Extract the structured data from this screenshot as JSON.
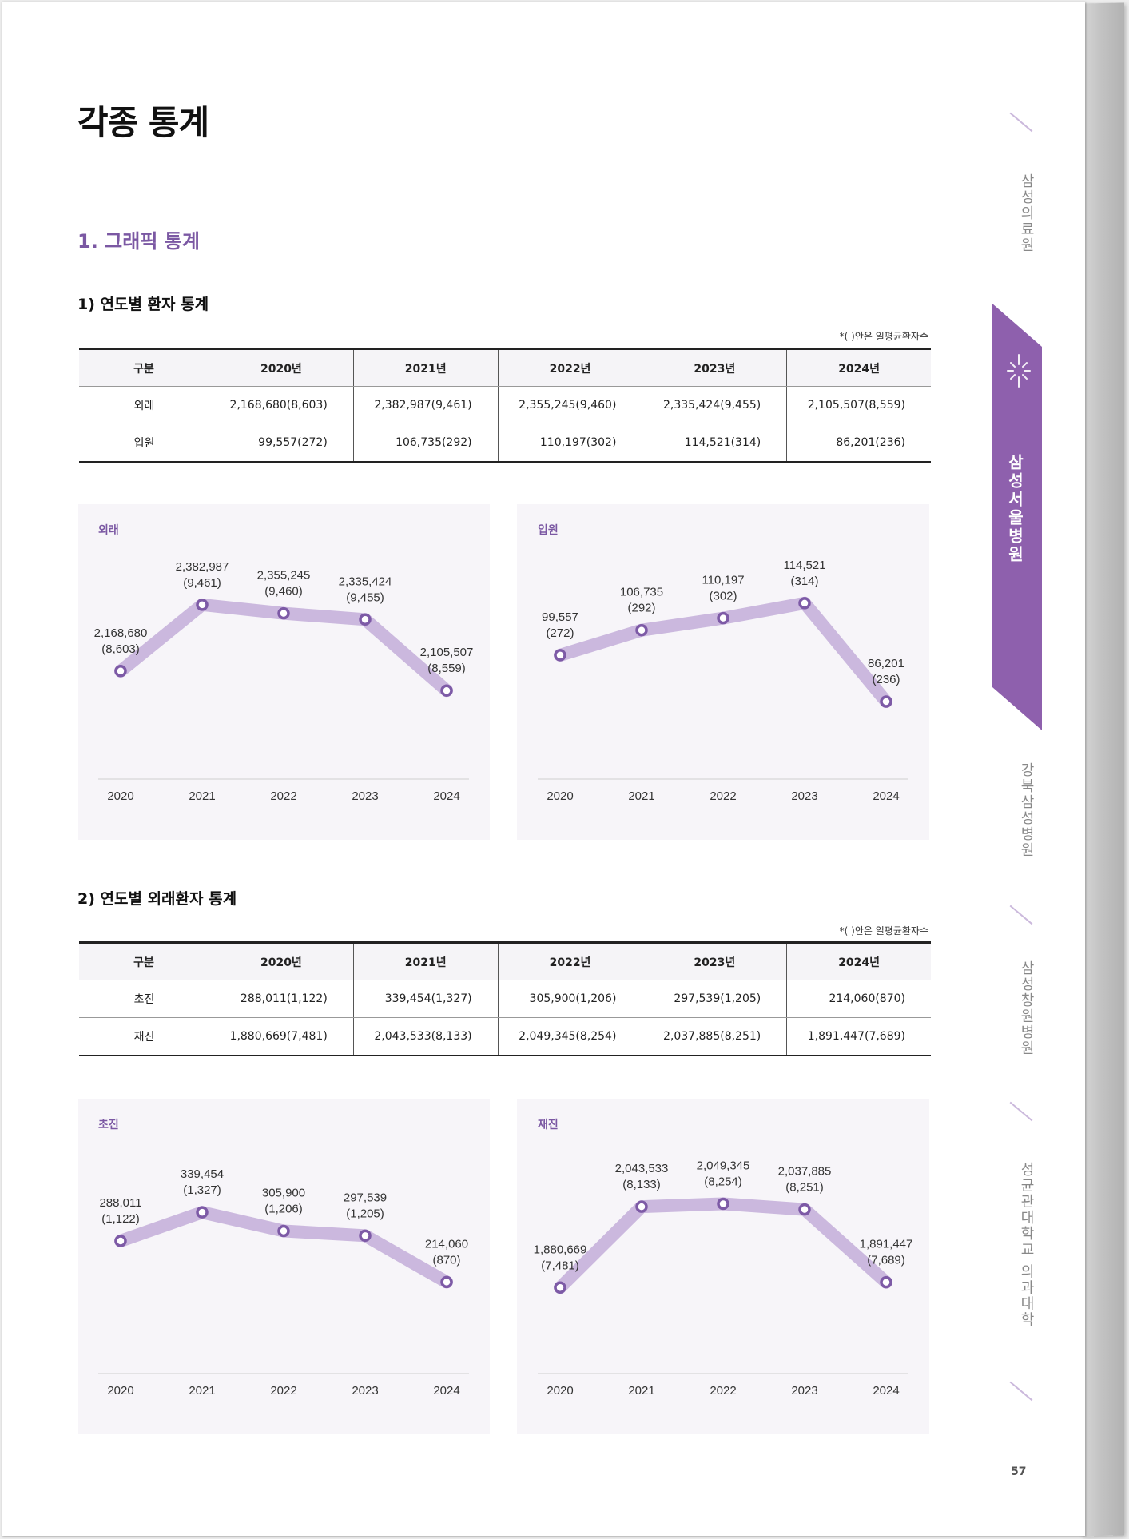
{
  "page_title": "각종 통계",
  "section_title": "1. 그래픽 통계",
  "note": "*(  )안은 일평균환자수",
  "side_nav": {
    "items": [
      "삼성의료원",
      "삼성서울병원",
      "강북삼성병원",
      "삼성창원병원",
      "성균관대학교 의과대학"
    ],
    "active": "삼성서울병원"
  },
  "page_number": "57",
  "sections": [
    {
      "title": "1) 연도별 환자 통계",
      "table": {
        "headers": [
          "구분",
          "2020년",
          "2021년",
          "2022년",
          "2023년",
          "2024년"
        ],
        "rows": [
          [
            "외래",
            "2,168,680(8,603)",
            "2,382,987(9,461)",
            "2,355,245(9,460)",
            "2,335,424(9,455)",
            "2,105,507(8,559)"
          ],
          [
            "입원",
            "99,557(272)",
            "106,735(292)",
            "110,197(302)",
            "114,521(314)",
            "86,201(236)"
          ]
        ]
      }
    },
    {
      "title": "2) 연도별 외래환자 통계",
      "table": {
        "headers": [
          "구분",
          "2020년",
          "2021년",
          "2022년",
          "2023년",
          "2024년"
        ],
        "rows": [
          [
            "초진",
            "288,011(1,122)",
            "339,454(1,327)",
            "305,900(1,206)",
            "297,539(1,205)",
            "214,060(870)"
          ],
          [
            "재진",
            "1,880,669(7,481)",
            "2,043,533(8,133)",
            "2,049,345(8,254)",
            "2,037,885(8,251)",
            "1,891,447(7,689)"
          ]
        ]
      }
    }
  ],
  "chart_data": [
    {
      "type": "line",
      "label": "외래",
      "x": [
        "2020",
        "2021",
        "2022",
        "2023",
        "2024"
      ],
      "values": [
        2168680,
        2382987,
        2355245,
        2335424,
        2105507
      ],
      "point_labels": [
        "2,168,680",
        "2,382,987",
        "2,355,245",
        "2,335,424",
        "2,105,507"
      ],
      "sub_labels": [
        "(8,603)",
        "(9,461)",
        "(9,460)",
        "(9,455)",
        "(8,559)"
      ],
      "ylim": [
        2000000,
        2450000
      ],
      "grid": false
    },
    {
      "type": "line",
      "label": "입원",
      "x": [
        "2020",
        "2021",
        "2022",
        "2023",
        "2024"
      ],
      "values": [
        99557,
        106735,
        110197,
        114521,
        86201
      ],
      "point_labels": [
        "99,557",
        "106,735",
        "110,197",
        "114,521",
        "86,201"
      ],
      "sub_labels": [
        "(272)",
        "(292)",
        "(302)",
        "(314)",
        "(236)"
      ],
      "ylim": [
        80000,
        120000
      ],
      "grid": false
    },
    {
      "type": "line",
      "label": "초진",
      "x": [
        "2020",
        "2021",
        "2022",
        "2023",
        "2024"
      ],
      "values": [
        288011,
        339454,
        305900,
        297539,
        214060
      ],
      "point_labels": [
        "288,011",
        "339,454",
        "305,900",
        "297,539",
        "214,060"
      ],
      "sub_labels": [
        "(1,122)",
        "(1,327)",
        "(1,206)",
        "(1,205)",
        "(870)"
      ],
      "ylim": [
        150000,
        400000
      ],
      "grid": false
    },
    {
      "type": "line",
      "label": "재진",
      "x": [
        "2020",
        "2021",
        "2022",
        "2023",
        "2024"
      ],
      "values": [
        1880669,
        2043533,
        2049345,
        2037885,
        1891447
      ],
      "point_labels": [
        "1,880,669",
        "2,043,533",
        "2,049,345",
        "2,037,885",
        "1,891,447"
      ],
      "sub_labels": [
        "(7,481)",
        "(8,133)",
        "(8,254)",
        "(8,251)",
        "(7,689)"
      ],
      "ylim": [
        1820000,
        2100000
      ],
      "grid": false
    }
  ],
  "colors": {
    "accent": "#8e60ad",
    "line": "#cbb8de",
    "marker": "#7d5aa6",
    "panel_bg": "#f7f5f9"
  }
}
